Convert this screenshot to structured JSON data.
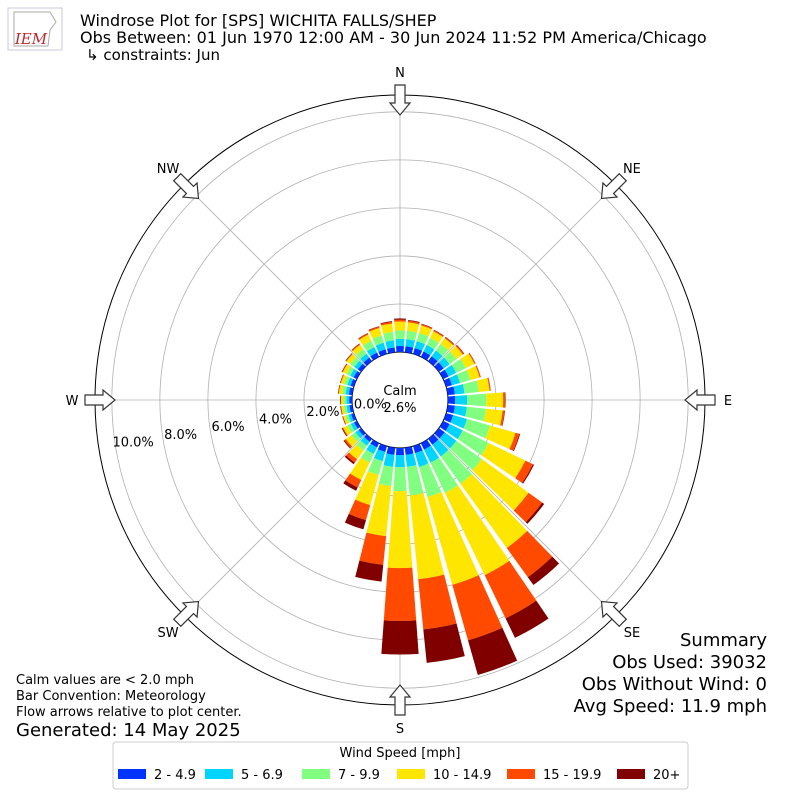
{
  "logo_text": "IEM",
  "chart_data": {
    "type": "windrose",
    "title": "Windrose Plot for [SPS] WICHITA FALLS/SHEP",
    "subtitle": "Obs Between: 01 Jun 1970 12:00 AM - 30 Jun 2024 11:52 PM America/Chicago",
    "subtitle2": "↳ constraints: Jun",
    "x": [
      0,
      10,
      20,
      30,
      40,
      50,
      60,
      70,
      80,
      90,
      100,
      110,
      120,
      130,
      140,
      150,
      160,
      170,
      180,
      190,
      200,
      210,
      220,
      230,
      240,
      250,
      260,
      270,
      280,
      290,
      300,
      310,
      320,
      330,
      340,
      350
    ],
    "xticks": [
      {
        "value": 0,
        "label": "N"
      },
      {
        "value": 45,
        "label": "NE"
      },
      {
        "value": 90,
        "label": "E"
      },
      {
        "value": 135,
        "label": "SE"
      },
      {
        "value": 180,
        "label": "S"
      },
      {
        "value": 225,
        "label": "SW"
      },
      {
        "value": 270,
        "label": "W"
      },
      {
        "value": 315,
        "label": "NW"
      }
    ],
    "ylim": [
      0,
      10.7
    ],
    "yticks": [
      {
        "value": 0,
        "label": "0.0%"
      },
      {
        "value": 2,
        "label": "2.0%"
      },
      {
        "value": 4,
        "label": "4.0%"
      },
      {
        "value": 6,
        "label": "6.0%"
      },
      {
        "value": 8,
        "label": "8.0%"
      },
      {
        "value": 10,
        "label": "10.0%"
      }
    ],
    "calm": {
      "text": "Calm",
      "value": 2.6,
      "value_label": "2.6%"
    },
    "legend_title": "Wind Speed [mph]",
    "series": [
      {
        "name": "2 - 4.9",
        "color": "#0033ff",
        "values": [
          0.25,
          0.25,
          0.25,
          0.25,
          0.25,
          0.25,
          0.25,
          0.25,
          0.3,
          0.3,
          0.3,
          0.3,
          0.3,
          0.3,
          0.3,
          0.3,
          0.3,
          0.3,
          0.3,
          0.3,
          0.25,
          0.2,
          0.15,
          0.13,
          0.13,
          0.12,
          0.12,
          0.12,
          0.14,
          0.14,
          0.15,
          0.17,
          0.18,
          0.2,
          0.2,
          0.2
        ]
      },
      {
        "name": "5 - 6.9",
        "color": "#00d4ff",
        "values": [
          0.3,
          0.3,
          0.3,
          0.3,
          0.3,
          0.3,
          0.35,
          0.35,
          0.4,
          0.5,
          0.5,
          0.6,
          0.6,
          0.6,
          0.6,
          0.6,
          0.6,
          0.5,
          0.5,
          0.5,
          0.4,
          0.3,
          0.2,
          0.17,
          0.15,
          0.12,
          0.12,
          0.12,
          0.14,
          0.14,
          0.16,
          0.18,
          0.2,
          0.25,
          0.28,
          0.3
        ]
      },
      {
        "name": "7 - 9.9",
        "color": "#80ff80",
        "values": [
          0.35,
          0.35,
          0.35,
          0.33,
          0.33,
          0.35,
          0.45,
          0.45,
          0.6,
          0.8,
          0.8,
          1.0,
          1.2,
          1.3,
          1.4,
          1.4,
          1.3,
          1.2,
          1.0,
          0.8,
          0.6,
          0.4,
          0.25,
          0.2,
          0.17,
          0.12,
          0.12,
          0.12,
          0.14,
          0.14,
          0.17,
          0.2,
          0.24,
          0.3,
          0.32,
          0.35
        ]
      },
      {
        "name": "10 - 14.9",
        "color": "#ffe600",
        "values": [
          0.37,
          0.35,
          0.33,
          0.3,
          0.3,
          0.33,
          0.4,
          0.4,
          0.45,
          0.7,
          0.7,
          1.1,
          1.7,
          2.4,
          3.3,
          3.8,
          3.8,
          3.5,
          3.2,
          2.1,
          1.3,
          0.8,
          0.45,
          0.28,
          0.18,
          0.1,
          0.1,
          0.1,
          0.14,
          0.14,
          0.17,
          0.2,
          0.22,
          0.28,
          0.32,
          0.35
        ]
      },
      {
        "name": "15 - 19.9",
        "color": "#ff4a00",
        "values": [
          0.08,
          0.07,
          0.05,
          0.05,
          0.05,
          0.05,
          0.04,
          0.04,
          0.04,
          0.08,
          0.08,
          0.17,
          0.35,
          0.7,
          1.5,
          2.0,
          2.4,
          2.1,
          2.2,
          1.2,
          0.65,
          0.35,
          0.17,
          0.08,
          0.04,
          0.02,
          0.02,
          0.02,
          0.02,
          0.02,
          0.03,
          0.03,
          0.04,
          0.05,
          0.06,
          0.07
        ]
      },
      {
        "name": "20+",
        "color": "#800000",
        "values": [
          0.05,
          0.03,
          0.02,
          0.02,
          0.02,
          0.02,
          0.01,
          0.01,
          0.01,
          0.02,
          0.02,
          0.03,
          0.05,
          0.1,
          0.4,
          0.9,
          1.5,
          1.4,
          1.4,
          0.7,
          0.4,
          0.15,
          0.08,
          0.04,
          0.03,
          0.02,
          0.02,
          0.02,
          0.02,
          0.02,
          0.02,
          0.02,
          0.02,
          0.02,
          0.02,
          0.03
        ]
      }
    ],
    "notes": [
      "Calm values are < 2.0 mph",
      "Bar Convention: Meteorology",
      "Flow arrows relative to plot center."
    ],
    "generated": "Generated: 14 May 2025",
    "summary": [
      "Summary",
      "Obs Used: 39032",
      "Obs Without Wind: 0",
      "Avg Speed: 11.9 mph"
    ]
  }
}
